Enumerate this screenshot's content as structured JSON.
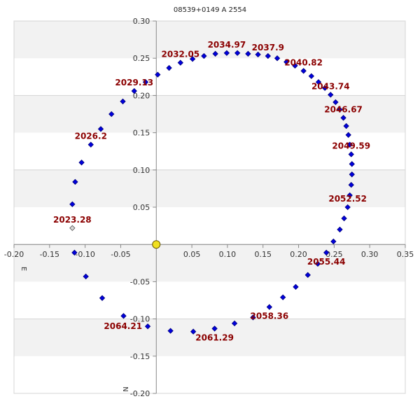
{
  "title": "08539+0149 A  2554",
  "axis_letters": {
    "east": "E",
    "north": "N"
  },
  "colors": {
    "band": "#f2f2f2",
    "gridline": "#d4d4d4",
    "axis": "#888888",
    "point_fill": "#0000dd",
    "point_stroke": "#00007a",
    "first_point_fill": "#d8d8d8",
    "primary_fill": "#f0e020",
    "label": "#8b0000"
  },
  "chart_data": {
    "type": "scatter",
    "title": "08539+0149 A  2554",
    "xlabel": "E",
    "ylabel": "N",
    "xlim": [
      -0.2,
      0.35
    ],
    "ylim": [
      -0.2,
      0.3
    ],
    "x_ticks": [
      "-0.20",
      "-0.15",
      "-0.10",
      "-0.05",
      "0.05",
      "0.10",
      "0.15",
      "0.20",
      "0.25",
      "0.30",
      "0.35"
    ],
    "x_tick_values": [
      -0.2,
      -0.15,
      -0.1,
      -0.05,
      0.05,
      0.1,
      0.15,
      0.2,
      0.25,
      0.3,
      0.35
    ],
    "y_ticks": [
      "0.30",
      "0.25",
      "0.20",
      "0.15",
      "0.10",
      "0.05",
      "-0.05",
      "-0.10",
      "-0.15",
      "-0.20"
    ],
    "y_tick_values": [
      0.3,
      0.25,
      0.2,
      0.15,
      0.1,
      0.05,
      -0.05,
      -0.1,
      -0.15,
      -0.2
    ],
    "grid": "horizontal bands",
    "primary": {
      "x": 0.0,
      "y": 0.0
    },
    "orbit_points": [
      {
        "x": -0.118,
        "y": 0.022,
        "first": true
      },
      {
        "x": -0.118,
        "y": 0.054
      },
      {
        "x": -0.114,
        "y": 0.084
      },
      {
        "x": -0.105,
        "y": 0.11
      },
      {
        "x": -0.092,
        "y": 0.134
      },
      {
        "x": -0.078,
        "y": 0.155
      },
      {
        "x": -0.063,
        "y": 0.175
      },
      {
        "x": -0.047,
        "y": 0.192
      },
      {
        "x": -0.031,
        "y": 0.206
      },
      {
        "x": -0.015,
        "y": 0.218
      },
      {
        "x": 0.002,
        "y": 0.228
      },
      {
        "x": 0.018,
        "y": 0.237
      },
      {
        "x": 0.034,
        "y": 0.244
      },
      {
        "x": 0.051,
        "y": 0.249
      },
      {
        "x": 0.067,
        "y": 0.253
      },
      {
        "x": 0.083,
        "y": 0.256
      },
      {
        "x": 0.099,
        "y": 0.257
      },
      {
        "x": 0.114,
        "y": 0.257
      },
      {
        "x": 0.129,
        "y": 0.256
      },
      {
        "x": 0.143,
        "y": 0.255
      },
      {
        "x": 0.157,
        "y": 0.253
      },
      {
        "x": 0.17,
        "y": 0.25
      },
      {
        "x": 0.183,
        "y": 0.245
      },
      {
        "x": 0.195,
        "y": 0.24
      },
      {
        "x": 0.207,
        "y": 0.233
      },
      {
        "x": 0.218,
        "y": 0.226
      },
      {
        "x": 0.228,
        "y": 0.218
      },
      {
        "x": 0.237,
        "y": 0.21
      },
      {
        "x": 0.245,
        "y": 0.201
      },
      {
        "x": 0.252,
        "y": 0.191
      },
      {
        "x": 0.258,
        "y": 0.181
      },
      {
        "x": 0.263,
        "y": 0.17
      },
      {
        "x": 0.267,
        "y": 0.159
      },
      {
        "x": 0.27,
        "y": 0.147
      },
      {
        "x": 0.272,
        "y": 0.134
      },
      {
        "x": 0.274,
        "y": 0.121
      },
      {
        "x": 0.275,
        "y": 0.108
      },
      {
        "x": 0.275,
        "y": 0.094
      },
      {
        "x": 0.274,
        "y": 0.08
      },
      {
        "x": 0.272,
        "y": 0.066
      },
      {
        "x": 0.269,
        "y": 0.05
      },
      {
        "x": 0.264,
        "y": 0.035
      },
      {
        "x": 0.258,
        "y": 0.02
      },
      {
        "x": 0.249,
        "y": 0.004
      },
      {
        "x": 0.239,
        "y": -0.011
      },
      {
        "x": 0.227,
        "y": -0.026
      },
      {
        "x": 0.213,
        "y": -0.041
      },
      {
        "x": 0.196,
        "y": -0.057
      },
      {
        "x": 0.178,
        "y": -0.071
      },
      {
        "x": 0.159,
        "y": -0.084
      },
      {
        "x": 0.136,
        "y": -0.098
      },
      {
        "x": 0.11,
        "y": -0.106
      },
      {
        "x": 0.082,
        "y": -0.113
      },
      {
        "x": 0.052,
        "y": -0.117
      },
      {
        "x": 0.02,
        "y": -0.116
      },
      {
        "x": -0.012,
        "y": -0.11
      },
      {
        "x": -0.046,
        "y": -0.096
      },
      {
        "x": -0.076,
        "y": -0.072
      },
      {
        "x": -0.099,
        "y": -0.043
      },
      {
        "x": -0.115,
        "y": -0.011
      }
    ],
    "annotations": [
      {
        "text": "2023.28",
        "x": -0.118,
        "y": 0.022,
        "pos": "above"
      },
      {
        "text": "2026.2",
        "x": -0.092,
        "y": 0.134,
        "pos": "above"
      },
      {
        "text": "2029.13",
        "x": -0.031,
        "y": 0.206,
        "pos": "above"
      },
      {
        "text": "2032.05",
        "x": 0.034,
        "y": 0.244,
        "pos": "above"
      },
      {
        "text": "2034.97",
        "x": 0.099,
        "y": 0.257,
        "pos": "above"
      },
      {
        "text": "2037.9",
        "x": 0.157,
        "y": 0.253,
        "pos": "above"
      },
      {
        "text": "2040.82",
        "x": 0.207,
        "y": 0.233,
        "pos": "above"
      },
      {
        "text": "2043.74",
        "x": 0.245,
        "y": 0.201,
        "pos": "above"
      },
      {
        "text": "2046.67",
        "x": 0.263,
        "y": 0.17,
        "pos": "above"
      },
      {
        "text": "2049.59",
        "x": 0.274,
        "y": 0.121,
        "pos": "above"
      },
      {
        "text": "2052.52",
        "x": 0.269,
        "y": 0.05,
        "pos": "above"
      },
      {
        "text": "2055.44",
        "x": 0.239,
        "y": -0.011,
        "pos": "below"
      },
      {
        "text": "2058.36",
        "x": 0.159,
        "y": -0.084,
        "pos": "below"
      },
      {
        "text": "2061.29",
        "x": 0.082,
        "y": -0.113,
        "pos": "below"
      },
      {
        "text": "2064.21",
        "x": -0.012,
        "y": -0.11,
        "pos": "left"
      }
    ]
  }
}
